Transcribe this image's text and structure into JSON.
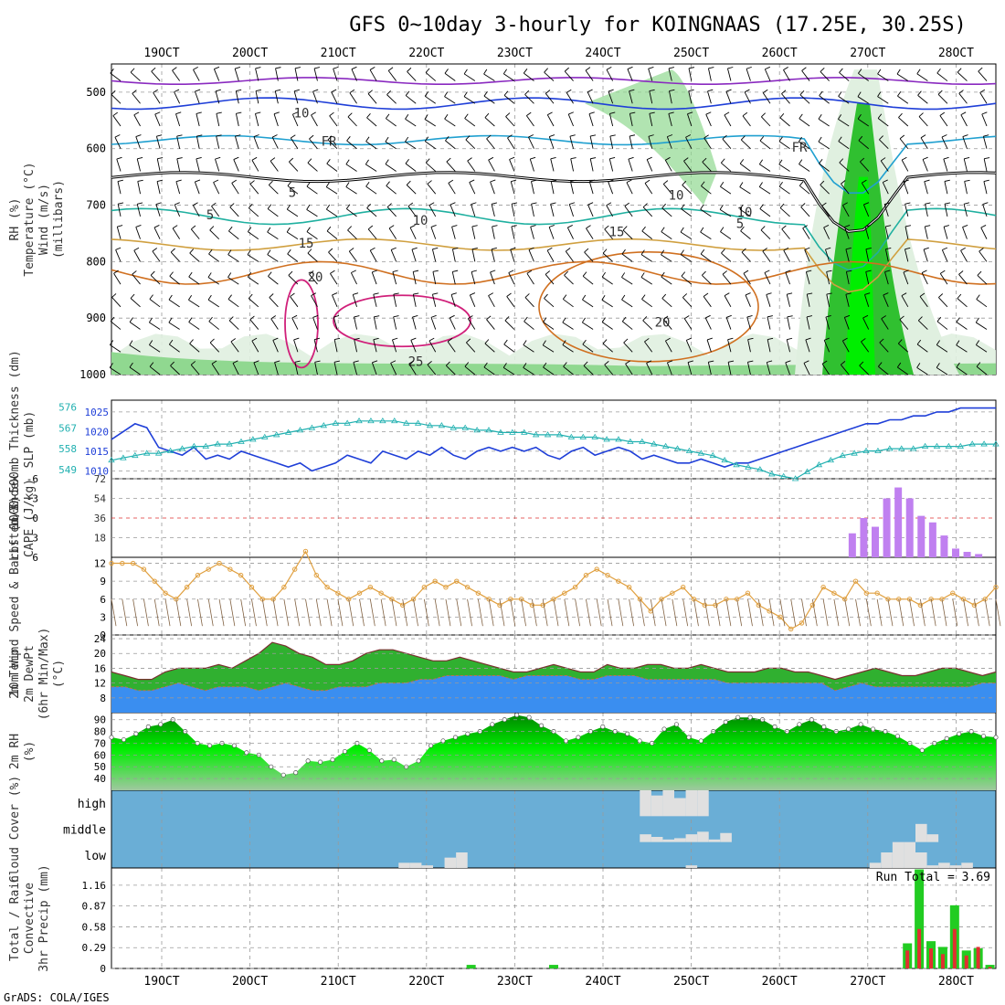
{
  "page": {
    "title": "GFS 0~10day 3-hourly for KOINGNAAS (17.25E, 30.25S)",
    "footer": "GrADS: COLA/IGES"
  },
  "colors": {
    "rh_light": "#e0f0e0",
    "rh_mid": "#90d890",
    "rh_dark": "#30c030",
    "rh_bright": "#00ee00",
    "freezing_line": "#000000",
    "slp_line": "#1f3fd8",
    "thickness_line": "#20b0b0",
    "cape_bar": "#c080f0",
    "lifted_index": "#e03030",
    "wind_speed": "#e0a040",
    "wind_barb": "#806040",
    "temp_fill": "#30b030",
    "dewpt_fill": "#3a8ef0",
    "cloud_bg": "#6aaed6",
    "cloud_fill": "#e0e0e0",
    "precip_total": "#22cc22",
    "precip_conv": "#e03030"
  },
  "chart_data": [
    {
      "id": "upper-air",
      "type": "heatmap",
      "title": "",
      "ylabels": [
        "RH (%)",
        "Temperature (°C)",
        "Wind (m/s)",
        "(millibars)"
      ],
      "yticks": [
        500,
        600,
        700,
        800,
        900,
        1000
      ],
      "ylim": [
        450,
        1000
      ],
      "x_ticks_top": [
        "19OCT",
        "20OCT",
        "21OCT",
        "22OCT",
        "23OCT",
        "24OCT",
        "25OCT",
        "26OCT",
        "27OCT",
        "28OCT"
      ],
      "x_ticks_bottom": [
        "19OCT",
        "20OCT",
        "21OCT",
        "22OCT",
        "23OCT",
        "24OCT",
        "25OCT",
        "26OCT",
        "27OCT",
        "28OCT"
      ],
      "temperature_contour_labels": [
        "10",
        "5",
        "FR",
        "5",
        "10",
        "15",
        "20",
        "25",
        "15",
        "10",
        "5",
        "FR",
        "10",
        "20"
      ],
      "freezing_level_label": "FR",
      "grid": true
    },
    {
      "id": "slp-thickness",
      "type": "line",
      "ylabels": [
        "1000-500mb Thickness (dm)",
        "SLP (mb)"
      ],
      "yticks_left": [
        549,
        558,
        567,
        576
      ],
      "yticks_right": [
        1010,
        1015,
        1020,
        1025
      ],
      "ylim_slp": [
        1008,
        1028
      ],
      "series": [
        {
          "name": "SLP",
          "values": [
            1018,
            1020,
            1022,
            1021,
            1016,
            1015,
            1014,
            1016,
            1013,
            1014,
            1013,
            1015,
            1014,
            1013,
            1012,
            1011,
            1012,
            1010,
            1011,
            1012,
            1014,
            1013,
            1012,
            1015,
            1014,
            1013,
            1015,
            1014,
            1016,
            1014,
            1013,
            1015,
            1016,
            1015,
            1016,
            1015,
            1016,
            1014,
            1013,
            1015,
            1016,
            1014,
            1015,
            1016,
            1015,
            1013,
            1014,
            1013,
            1012,
            1012,
            1013,
            1012,
            1011,
            1012,
            1012,
            1013,
            1014,
            1015,
            1016,
            1017,
            1018,
            1019,
            1020,
            1021,
            1022,
            1022,
            1023,
            1023,
            1024,
            1024,
            1025,
            1025,
            1026,
            1026,
            1026,
            1026
          ]
        },
        {
          "name": "Thickness",
          "values": [
            553,
            554,
            555,
            556,
            556,
            557,
            558,
            559,
            559,
            560,
            560,
            561,
            562,
            563,
            564,
            565,
            566,
            567,
            568,
            569,
            569,
            570,
            570,
            570,
            570,
            569,
            569,
            568,
            568,
            567,
            567,
            566,
            566,
            565,
            565,
            565,
            564,
            564,
            564,
            563,
            563,
            563,
            562,
            562,
            561,
            561,
            560,
            559,
            558,
            557,
            556,
            555,
            553,
            551,
            550,
            549,
            547,
            546,
            545,
            548,
            551,
            553,
            555,
            556,
            557,
            557,
            558,
            558,
            558,
            559,
            559,
            559,
            559,
            560,
            560,
            560
          ]
        }
      ],
      "grid": true
    },
    {
      "id": "cape-li",
      "type": "bar",
      "ylabels": [
        "Lifted Index",
        "CAPE (J/kg)"
      ],
      "yticks_left": [
        "6",
        "3",
        "0",
        "-3",
        "-6"
      ],
      "yticks_right": [
        18,
        36,
        54,
        72
      ],
      "ylim_cape": [
        0,
        72
      ],
      "series": [
        {
          "name": "CAPE",
          "values": [
            0,
            0,
            0,
            0,
            0,
            0,
            0,
            0,
            0,
            0,
            0,
            0,
            0,
            0,
            0,
            0,
            0,
            0,
            0,
            0,
            0,
            0,
            0,
            0,
            0,
            0,
            0,
            0,
            0,
            0,
            0,
            0,
            0,
            0,
            0,
            0,
            0,
            0,
            0,
            0,
            0,
            0,
            0,
            0,
            0,
            0,
            0,
            0,
            0,
            0,
            0,
            0,
            0,
            0,
            0,
            0,
            0,
            0,
            0,
            0,
            0,
            0,
            0,
            0,
            22,
            36,
            28,
            54,
            64,
            54,
            38,
            32,
            20,
            8,
            5,
            3,
            0
          ]
        }
      ],
      "grid": true
    },
    {
      "id": "wind10m",
      "type": "line",
      "ylabels": [
        "10m Wind Speed & Barbs (m/s)"
      ],
      "yticks": [
        0,
        3,
        6,
        9,
        12
      ],
      "ylim": [
        0,
        13
      ],
      "series": [
        {
          "name": "10m Wind Speed",
          "values": [
            12,
            12,
            12,
            11,
            9,
            7,
            6,
            8,
            10,
            11,
            12,
            11,
            10,
            8,
            6,
            6,
            8,
            11,
            14,
            10,
            8,
            7,
            6,
            7,
            8,
            7,
            6,
            5,
            6,
            8,
            9,
            8,
            9,
            8,
            7,
            6,
            5,
            6,
            6,
            5,
            5,
            6,
            7,
            8,
            10,
            11,
            10,
            9,
            8,
            6,
            4,
            6,
            7,
            8,
            6,
            5,
            5,
            6,
            6,
            7,
            5,
            4,
            3,
            1,
            2,
            5,
            8,
            7,
            6,
            9,
            7,
            7,
            6,
            6,
            6,
            5,
            6,
            6,
            7,
            6,
            5,
            6,
            8
          ]
        }
      ],
      "grid": true
    },
    {
      "id": "temp2m",
      "type": "area",
      "ylabels": [
        "2m Temp",
        "2m DewPt",
        "(6hr Min/Max)",
        "(°C)"
      ],
      "yticks": [
        8,
        12,
        16,
        20,
        24
      ],
      "ylim": [
        4,
        25
      ],
      "series": [
        {
          "name": "2m Temp",
          "values": [
            15,
            14,
            13,
            13,
            15,
            16,
            16,
            16,
            17,
            16,
            18,
            20,
            23,
            22,
            20,
            19,
            17,
            17,
            18,
            20,
            21,
            21,
            20,
            19,
            18,
            18,
            19,
            18,
            17,
            16,
            15,
            15,
            16,
            17,
            16,
            15,
            15,
            17,
            16,
            16,
            17,
            17,
            16,
            16,
            17,
            16,
            15,
            15,
            15,
            16,
            16,
            15,
            15,
            14,
            13,
            14,
            15,
            16,
            15,
            14,
            14,
            15,
            16,
            16,
            15,
            14,
            15
          ]
        },
        {
          "name": "2m DewPt",
          "values": [
            11,
            11,
            10,
            10,
            11,
            12,
            11,
            10,
            11,
            11,
            11,
            10,
            11,
            12,
            11,
            10,
            10,
            11,
            11,
            11,
            12,
            12,
            12,
            13,
            13,
            14,
            14,
            14,
            14,
            14,
            13,
            14,
            14,
            14,
            14,
            13,
            13,
            14,
            14,
            14,
            13,
            13,
            13,
            13,
            13,
            13,
            12,
            12,
            12,
            12,
            12,
            12,
            12,
            12,
            10,
            11,
            12,
            11,
            11,
            11,
            11,
            11,
            11,
            11,
            11,
            12,
            12
          ]
        }
      ],
      "grid": true
    },
    {
      "id": "rh2m",
      "type": "area",
      "ylabels": [
        "2m RH",
        "(%)"
      ],
      "yticks": [
        40,
        50,
        60,
        70,
        80,
        90
      ],
      "ylim": [
        30,
        96
      ],
      "series": [
        {
          "name": "2m RH",
          "values": [
            75,
            73,
            78,
            84,
            86,
            90,
            80,
            70,
            68,
            70,
            68,
            62,
            60,
            50,
            43,
            45,
            55,
            54,
            56,
            63,
            70,
            64,
            55,
            56,
            50,
            55,
            68,
            72,
            75,
            78,
            80,
            86,
            90,
            94,
            92,
            85,
            80,
            72,
            75,
            80,
            84,
            80,
            78,
            72,
            70,
            82,
            86,
            75,
            72,
            80,
            88,
            92,
            92,
            90,
            84,
            80,
            86,
            90,
            84,
            80,
            82,
            86,
            82,
            80,
            76,
            70,
            64,
            70,
            74,
            78,
            80,
            76,
            75
          ]
        }
      ],
      "grid": true
    },
    {
      "id": "cloud",
      "type": "bar",
      "ylabels": [
        "Cloud Cover (%)"
      ],
      "yticks": [
        "high",
        "middle",
        "low"
      ],
      "series": [
        {
          "name": "high",
          "values": [
            0,
            0,
            0,
            0,
            0,
            0,
            0,
            0,
            0,
            0,
            0,
            0,
            0,
            0,
            0,
            0,
            0,
            0,
            0,
            0,
            0,
            0,
            0,
            0,
            0,
            0,
            0,
            0,
            0,
            0,
            0,
            0,
            0,
            0,
            0,
            0,
            0,
            0,
            0,
            0,
            0,
            0,
            0,
            0,
            0,
            0,
            100,
            80,
            100,
            70,
            100,
            100,
            0,
            0,
            0,
            0,
            0,
            0,
            0,
            0,
            0,
            0,
            0,
            0,
            0,
            0,
            0,
            0,
            0,
            0,
            0,
            0,
            0,
            0,
            0,
            0,
            0
          ]
        },
        {
          "name": "middle",
          "values": [
            0,
            0,
            0,
            0,
            0,
            0,
            0,
            0,
            0,
            0,
            0,
            0,
            0,
            0,
            0,
            0,
            0,
            0,
            0,
            0,
            0,
            0,
            0,
            0,
            0,
            0,
            0,
            0,
            0,
            0,
            0,
            0,
            0,
            0,
            0,
            0,
            0,
            0,
            0,
            0,
            0,
            0,
            0,
            0,
            0,
            0,
            30,
            20,
            10,
            15,
            30,
            40,
            10,
            35,
            0,
            0,
            0,
            0,
            0,
            0,
            0,
            0,
            0,
            0,
            0,
            0,
            0,
            0,
            0,
            0,
            70,
            30,
            0,
            0,
            0,
            0,
            0
          ]
        },
        {
          "name": "low",
          "values": [
            0,
            0,
            0,
            0,
            0,
            0,
            0,
            0,
            0,
            0,
            0,
            0,
            0,
            0,
            0,
            0,
            0,
            0,
            0,
            0,
            0,
            0,
            0,
            0,
            0,
            20,
            20,
            10,
            0,
            40,
            60,
            0,
            0,
            0,
            0,
            0,
            0,
            0,
            0,
            0,
            0,
            0,
            0,
            0,
            0,
            0,
            0,
            0,
            0,
            0,
            10,
            0,
            0,
            0,
            0,
            0,
            0,
            0,
            0,
            0,
            0,
            0,
            0,
            0,
            0,
            0,
            20,
            60,
            100,
            100,
            60,
            10,
            20,
            10,
            20,
            0,
            0
          ]
        }
      ],
      "grid": true
    },
    {
      "id": "precip",
      "type": "bar",
      "ylabels": [
        "Total / Rain",
        "Convective",
        "3hr Precip (mm)"
      ],
      "yticks": [
        0,
        0.29,
        0.58,
        0.87,
        1.16
      ],
      "ylim": [
        0,
        1.4
      ],
      "annotation": "Run Total = 3.69",
      "series": [
        {
          "name": "Total",
          "values": [
            0,
            0,
            0,
            0,
            0,
            0,
            0,
            0,
            0,
            0,
            0,
            0,
            0,
            0,
            0,
            0,
            0,
            0,
            0,
            0,
            0,
            0,
            0,
            0,
            0,
            0,
            0,
            0,
            0,
            0,
            0.05,
            0,
            0,
            0,
            0,
            0,
            0,
            0.05,
            0,
            0,
            0,
            0,
            0,
            0,
            0,
            0,
            0,
            0,
            0,
            0,
            0,
            0,
            0,
            0,
            0,
            0,
            0,
            0,
            0,
            0,
            0,
            0,
            0,
            0,
            0,
            0,
            0,
            0.35,
            1.38,
            0.38,
            0.3,
            0.88,
            0.25,
            0.28,
            0.05
          ]
        },
        {
          "name": "Convective",
          "values": [
            0,
            0,
            0,
            0,
            0,
            0,
            0,
            0,
            0,
            0,
            0,
            0,
            0,
            0,
            0,
            0,
            0,
            0,
            0,
            0,
            0,
            0,
            0,
            0,
            0,
            0,
            0,
            0,
            0,
            0,
            0,
            0,
            0,
            0,
            0,
            0,
            0,
            0,
            0,
            0,
            0,
            0,
            0,
            0,
            0,
            0,
            0,
            0,
            0,
            0,
            0,
            0,
            0,
            0,
            0,
            0,
            0,
            0,
            0,
            0,
            0,
            0,
            0,
            0,
            0,
            0,
            0,
            0.25,
            0.55,
            0.28,
            0.2,
            0.55,
            0.18,
            0.3,
            0.02
          ]
        }
      ],
      "grid": true
    }
  ]
}
